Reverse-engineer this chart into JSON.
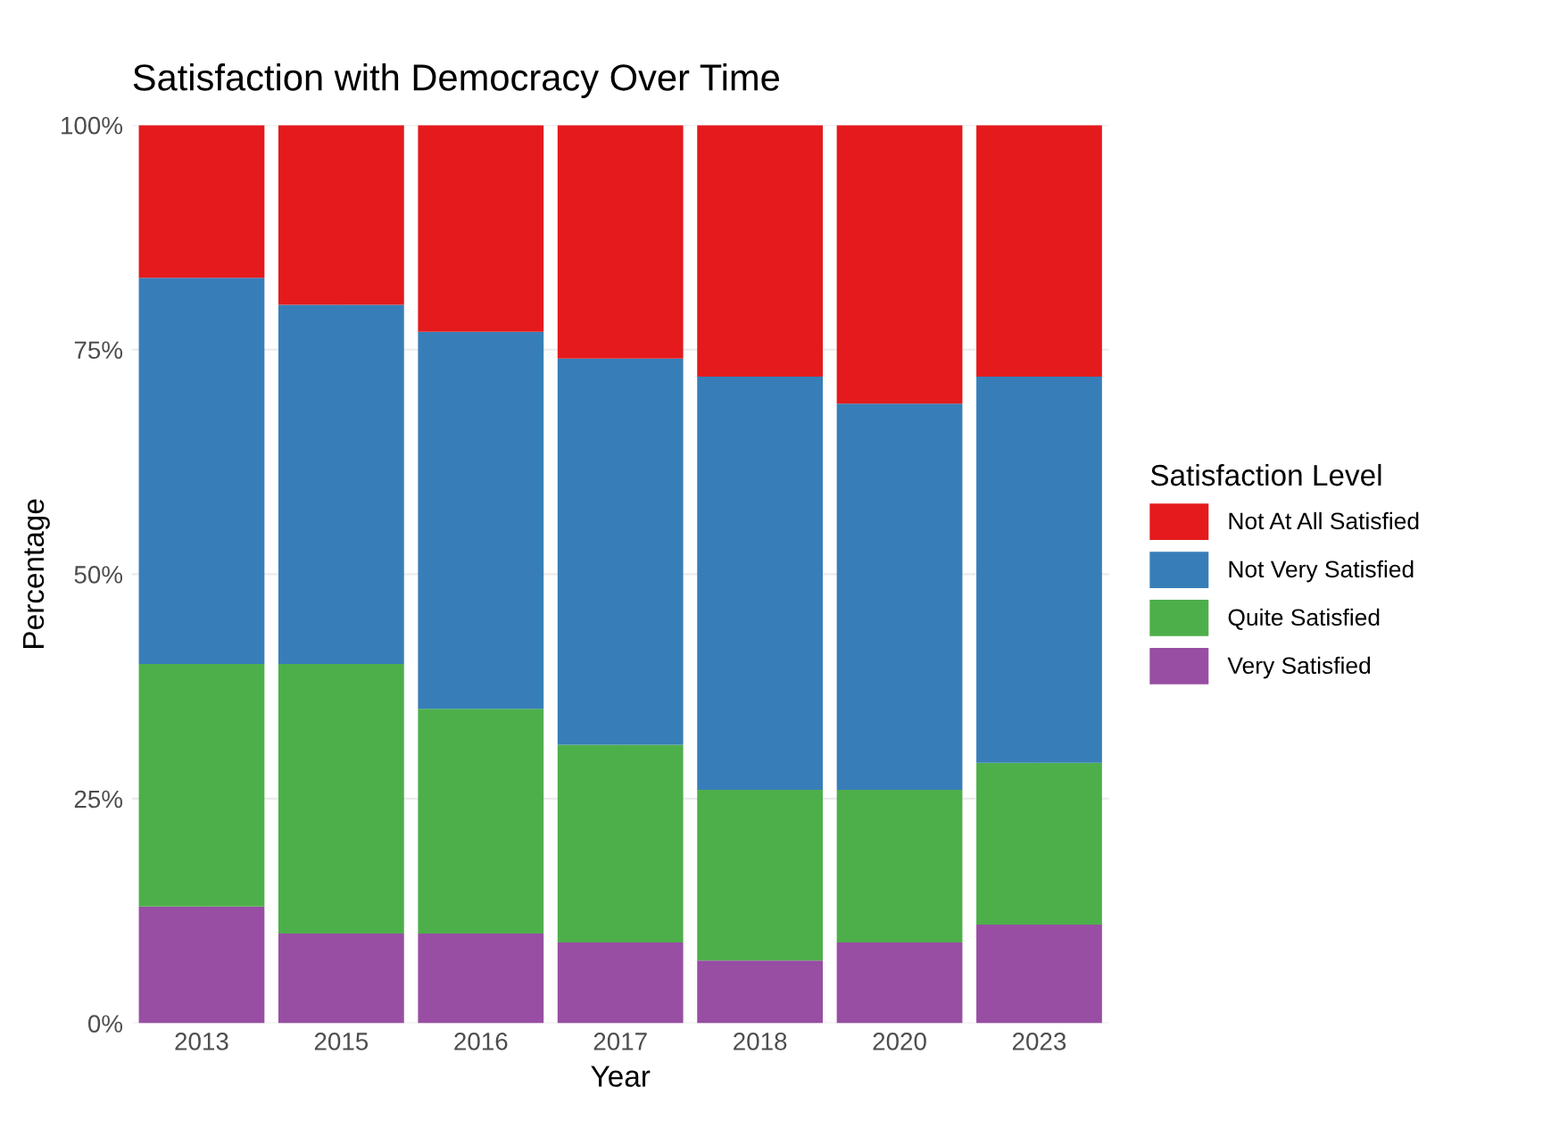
{
  "chart_data": {
    "type": "bar",
    "title": "Satisfaction with Democracy Over Time",
    "xlabel": "Year",
    "ylabel": "Percentage",
    "legend_title": "Satisfaction Level",
    "categories": [
      "2013",
      "2015",
      "2016",
      "2017",
      "2018",
      "2020",
      "2023"
    ],
    "stacked": true,
    "ylim": [
      0,
      100
    ],
    "yticks": [
      {
        "value": 0,
        "label": "0%"
      },
      {
        "value": 25,
        "label": "25%"
      },
      {
        "value": 50,
        "label": "50%"
      },
      {
        "value": 75,
        "label": "75%"
      },
      {
        "value": 100,
        "label": "100%"
      }
    ],
    "grid": true,
    "legend": "right",
    "series": [
      {
        "name": "Very Satisfied",
        "color": "#984ea3",
        "values": [
          13,
          10,
          10,
          9,
          7,
          9,
          11
        ]
      },
      {
        "name": "Quite Satisfied",
        "color": "#4daf4a",
        "values": [
          27,
          30,
          25,
          22,
          19,
          17,
          18
        ]
      },
      {
        "name": "Not Very Satisfied",
        "color": "#377eb8",
        "values": [
          43,
          40,
          42,
          43,
          46,
          43,
          43
        ]
      },
      {
        "name": "Not At All Satisfied",
        "color": "#e41a1c",
        "values": [
          17,
          20,
          23,
          26,
          28,
          31,
          28
        ]
      }
    ]
  }
}
